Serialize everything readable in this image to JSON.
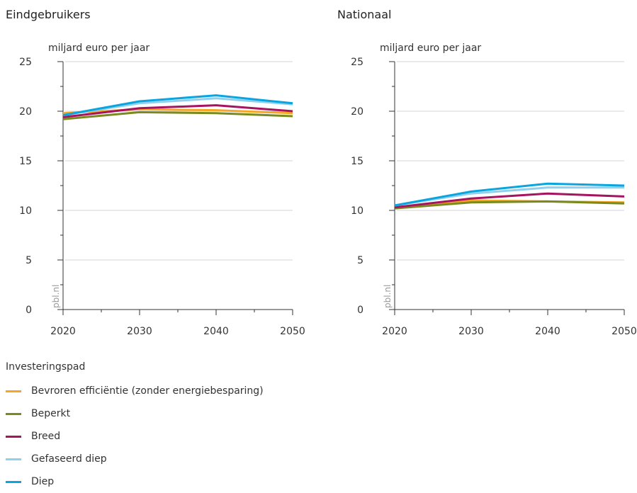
{
  "chart_data": [
    {
      "type": "line",
      "title": "Eindgebruikers",
      "ylabel": "miljard euro per jaar",
      "source": "pbl.nl",
      "x": [
        2020,
        2030,
        2040,
        2050
      ],
      "xlim": [
        2020,
        2050
      ],
      "ylim": [
        0,
        25
      ],
      "yticks": [
        0,
        5,
        10,
        15,
        20,
        25
      ],
      "grid": true,
      "series": [
        {
          "name": "Bevroren efficiëntie (zonder energiebesparing)",
          "color": "#f5a623",
          "values": [
            19.8,
            20.2,
            20.1,
            19.8
          ]
        },
        {
          "name": "Beperkt",
          "color": "#7a8a1e",
          "values": [
            19.2,
            19.9,
            19.8,
            19.5
          ]
        },
        {
          "name": "Breed",
          "color": "#a6135f",
          "values": [
            19.4,
            20.3,
            20.6,
            20.0
          ]
        },
        {
          "name": "Gefaseerd diep",
          "color": "#8fd0ee",
          "values": [
            19.6,
            20.8,
            21.3,
            20.7
          ]
        },
        {
          "name": "Diep",
          "color": "#0aa5df",
          "values": [
            19.6,
            21.0,
            21.6,
            20.8
          ]
        }
      ]
    },
    {
      "type": "line",
      "title": "Nationaal",
      "ylabel": "miljard euro per jaar",
      "source": "pbl.nl",
      "x": [
        2020,
        2030,
        2040,
        2050
      ],
      "xlim": [
        2020,
        2050
      ],
      "ylim": [
        0,
        25
      ],
      "yticks": [
        0,
        5,
        10,
        15,
        20,
        25
      ],
      "grid": true,
      "series": [
        {
          "name": "Bevroren efficiëntie (zonder energiebesparing)",
          "color": "#f5a623",
          "values": [
            10.3,
            11.0,
            10.9,
            10.8
          ]
        },
        {
          "name": "Beperkt",
          "color": "#7a8a1e",
          "values": [
            10.2,
            10.8,
            10.9,
            10.7
          ]
        },
        {
          "name": "Breed",
          "color": "#a6135f",
          "values": [
            10.3,
            11.2,
            11.7,
            11.4
          ]
        },
        {
          "name": "Gefaseerd diep",
          "color": "#8fd0ee",
          "values": [
            10.5,
            11.7,
            12.3,
            12.3
          ]
        },
        {
          "name": "Diep",
          "color": "#0aa5df",
          "values": [
            10.5,
            11.9,
            12.7,
            12.5
          ]
        }
      ]
    }
  ],
  "legend": {
    "title": "Investeringspad",
    "items": [
      {
        "label": "Bevroren efficiëntie (zonder energiebesparing)",
        "color": "#f5a623"
      },
      {
        "label": "Beperkt",
        "color": "#7a8a1e"
      },
      {
        "label": "Breed",
        "color": "#a6135f"
      },
      {
        "label": "Gefaseerd diep",
        "color": "#8fd0ee"
      },
      {
        "label": "Diep",
        "color": "#0aa5df"
      }
    ]
  }
}
